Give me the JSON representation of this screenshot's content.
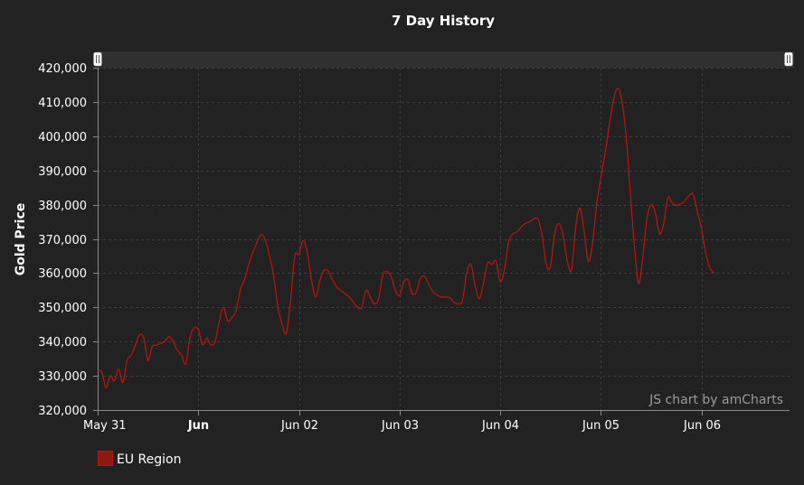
{
  "chart_data": {
    "type": "line",
    "title": "7 Day History",
    "ylabel": "Gold Price",
    "xlabel": "",
    "ylim": [
      320000,
      420000
    ],
    "yticks": [
      "320,000",
      "330,000",
      "340,000",
      "350,000",
      "360,000",
      "370,000",
      "380,000",
      "390,000",
      "400,000",
      "410,000",
      "420,000"
    ],
    "x_domain": [
      "2023-05-31T00:00",
      "2023-06-06T21:00"
    ],
    "xticks": [
      {
        "date": "2023-05-31T00:00",
        "label": "May 31",
        "bold": false
      },
      {
        "date": "2023-06-01T00:00",
        "label": "Jun",
        "bold": true
      },
      {
        "date": "2023-06-02T00:00",
        "label": "Jun 02",
        "bold": false
      },
      {
        "date": "2023-06-03T00:00",
        "label": "Jun 03",
        "bold": false
      },
      {
        "date": "2023-06-04T00:00",
        "label": "Jun 04",
        "bold": false
      },
      {
        "date": "2023-06-05T00:00",
        "label": "Jun 05",
        "bold": false
      },
      {
        "date": "2023-06-06T00:00",
        "label": "Jun 06",
        "bold": false
      }
    ],
    "grid": true,
    "legend_position": "bottom-left",
    "credit": "JS chart by amCharts",
    "series": [
      {
        "name": "EU Region",
        "color": "#b3170f",
        "points": [
          [
            "2023-05-31T00:00",
            331500
          ],
          [
            "2023-05-31T01:00",
            331000
          ],
          [
            "2023-05-31T02:00",
            326500
          ],
          [
            "2023-05-31T03:00",
            330000
          ],
          [
            "2023-05-31T04:00",
            328500
          ],
          [
            "2023-05-31T05:00",
            332000
          ],
          [
            "2023-05-31T06:00",
            328000
          ],
          [
            "2023-05-31T07:00",
            334500
          ],
          [
            "2023-05-31T08:00",
            336000
          ],
          [
            "2023-05-31T09:00",
            339000
          ],
          [
            "2023-05-31T10:00",
            342000
          ],
          [
            "2023-05-31T11:00",
            341000
          ],
          [
            "2023-05-31T12:00",
            334500
          ],
          [
            "2023-05-31T13:00",
            338500
          ],
          [
            "2023-05-31T14:00",
            339000
          ],
          [
            "2023-05-31T15:00",
            339500
          ],
          [
            "2023-05-31T16:00",
            340000
          ],
          [
            "2023-05-31T17:00",
            341500
          ],
          [
            "2023-05-31T18:00",
            340000
          ],
          [
            "2023-05-31T19:00",
            337500
          ],
          [
            "2023-05-31T20:00",
            336000
          ],
          [
            "2023-05-31T21:00",
            333500
          ],
          [
            "2023-05-31T22:00",
            341000
          ],
          [
            "2023-05-31T23:00",
            344000
          ],
          [
            "2023-06-01T00:00",
            343500
          ],
          [
            "2023-06-01T01:00",
            339000
          ],
          [
            "2023-06-01T02:00",
            341000
          ],
          [
            "2023-06-01T03:00",
            339000
          ],
          [
            "2023-06-01T04:00",
            340000
          ],
          [
            "2023-06-01T05:00",
            346000
          ],
          [
            "2023-06-01T06:00",
            350000
          ],
          [
            "2023-06-01T07:00",
            346000
          ],
          [
            "2023-06-01T08:00",
            347000
          ],
          [
            "2023-06-01T09:00",
            349000
          ],
          [
            "2023-06-01T10:00",
            355000
          ],
          [
            "2023-06-01T11:00",
            358000
          ],
          [
            "2023-06-01T12:00",
            362500
          ],
          [
            "2023-06-01T13:00",
            366000
          ],
          [
            "2023-06-01T14:00",
            369000
          ],
          [
            "2023-06-01T15:00",
            371300
          ],
          [
            "2023-06-01T16:00",
            369500
          ],
          [
            "2023-06-01T17:00",
            365000
          ],
          [
            "2023-06-01T18:00",
            359000
          ],
          [
            "2023-06-01T19:00",
            350000
          ],
          [
            "2023-06-01T20:00",
            345000
          ],
          [
            "2023-06-01T21:00",
            342500
          ],
          [
            "2023-06-01T22:00",
            352000
          ],
          [
            "2023-06-01T23:00",
            365000
          ],
          [
            "2023-06-02T00:00",
            365500
          ],
          [
            "2023-06-02T01:00",
            369500
          ],
          [
            "2023-06-02T02:00",
            366000
          ],
          [
            "2023-06-02T03:00",
            358000
          ],
          [
            "2023-06-02T04:00",
            353000
          ],
          [
            "2023-06-02T05:00",
            358000
          ],
          [
            "2023-06-02T06:00",
            360800
          ],
          [
            "2023-06-02T07:00",
            360600
          ],
          [
            "2023-06-02T08:00",
            358000
          ],
          [
            "2023-06-02T09:00",
            356000
          ],
          [
            "2023-06-02T10:00",
            355000
          ],
          [
            "2023-06-02T11:00",
            354000
          ],
          [
            "2023-06-02T12:00",
            353000
          ],
          [
            "2023-06-02T13:00",
            351500
          ],
          [
            "2023-06-02T14:00",
            350000
          ],
          [
            "2023-06-02T15:00",
            350000
          ],
          [
            "2023-06-02T16:00",
            355000
          ],
          [
            "2023-06-02T17:00",
            353000
          ],
          [
            "2023-06-02T18:00",
            351000
          ],
          [
            "2023-06-02T19:00",
            352500
          ],
          [
            "2023-06-02T20:00",
            359500
          ],
          [
            "2023-06-02T21:00",
            360500
          ],
          [
            "2023-06-02T22:00",
            359000
          ],
          [
            "2023-06-02T23:00",
            355000
          ],
          [
            "2023-06-03T00:00",
            353500
          ],
          [
            "2023-06-03T01:00",
            357500
          ],
          [
            "2023-06-03T02:00",
            358000
          ],
          [
            "2023-06-03T03:00",
            354000
          ],
          [
            "2023-06-03T04:00",
            354500
          ],
          [
            "2023-06-03T05:00",
            358500
          ],
          [
            "2023-06-03T06:00",
            359000
          ],
          [
            "2023-06-03T07:00",
            356500
          ],
          [
            "2023-06-03T08:00",
            354500
          ],
          [
            "2023-06-03T09:00",
            353500
          ],
          [
            "2023-06-03T10:00",
            353000
          ],
          [
            "2023-06-03T11:00",
            353000
          ],
          [
            "2023-06-03T12:00",
            352800
          ],
          [
            "2023-06-03T13:00",
            351500
          ],
          [
            "2023-06-03T14:00",
            351000
          ],
          [
            "2023-06-03T15:00",
            352000
          ],
          [
            "2023-06-03T16:00",
            360000
          ],
          [
            "2023-06-03T17:00",
            362500
          ],
          [
            "2023-06-03T18:00",
            356500
          ],
          [
            "2023-06-03T19:00",
            352500
          ],
          [
            "2023-06-03T20:00",
            357000
          ],
          [
            "2023-06-03T21:00",
            363000
          ],
          [
            "2023-06-03T22:00",
            362500
          ],
          [
            "2023-06-03T23:00",
            363500
          ],
          [
            "2023-06-04T00:00",
            357500
          ],
          [
            "2023-06-04T01:00",
            361000
          ],
          [
            "2023-06-04T02:00",
            369000
          ],
          [
            "2023-06-04T03:00",
            371500
          ],
          [
            "2023-06-04T04:00",
            372000
          ],
          [
            "2023-06-04T05:00",
            373500
          ],
          [
            "2023-06-04T06:00",
            374500
          ],
          [
            "2023-06-04T07:00",
            375000
          ],
          [
            "2023-06-04T08:00",
            375800
          ],
          [
            "2023-06-04T09:00",
            375800
          ],
          [
            "2023-06-04T10:00",
            371000
          ],
          [
            "2023-06-04T11:00",
            362500
          ],
          [
            "2023-06-04T12:00",
            362000
          ],
          [
            "2023-06-04T13:00",
            371500
          ],
          [
            "2023-06-04T14:00",
            374500
          ],
          [
            "2023-06-04T15:00",
            371000
          ],
          [
            "2023-06-04T16:00",
            363500
          ],
          [
            "2023-06-04T17:00",
            361000
          ],
          [
            "2023-06-04T18:00",
            373500
          ],
          [
            "2023-06-04T19:00",
            379000
          ],
          [
            "2023-06-04T20:00",
            372500
          ],
          [
            "2023-06-04T21:00",
            363500
          ],
          [
            "2023-06-04T22:00",
            368500
          ],
          [
            "2023-06-04T23:00",
            380000
          ],
          [
            "2023-06-05T00:00",
            388000
          ],
          [
            "2023-06-05T01:00",
            395000
          ],
          [
            "2023-06-05T02:00",
            403000
          ],
          [
            "2023-06-05T03:00",
            410500
          ],
          [
            "2023-06-05T04:00",
            414000
          ],
          [
            "2023-06-05T05:00",
            410500
          ],
          [
            "2023-06-05T06:00",
            400500
          ],
          [
            "2023-06-05T07:00",
            384000
          ],
          [
            "2023-06-05T08:00",
            368000
          ],
          [
            "2023-06-05T09:00",
            357000
          ],
          [
            "2023-06-05T10:00",
            364500
          ],
          [
            "2023-06-05T11:00",
            376000
          ],
          [
            "2023-06-05T12:00",
            380000
          ],
          [
            "2023-06-05T13:00",
            377500
          ],
          [
            "2023-06-05T14:00",
            371500
          ],
          [
            "2023-06-05T15:00",
            374500
          ],
          [
            "2023-06-05T16:00",
            382000
          ],
          [
            "2023-06-05T17:00",
            380500
          ],
          [
            "2023-06-05T18:00",
            379800
          ],
          [
            "2023-06-05T19:00",
            380200
          ],
          [
            "2023-06-05T20:00",
            381000
          ],
          [
            "2023-06-05T21:00",
            382600
          ],
          [
            "2023-06-05T22:00",
            383000
          ],
          [
            "2023-06-05T23:00",
            378000
          ],
          [
            "2023-06-06T00:00",
            373000
          ],
          [
            "2023-06-06T01:00",
            366000
          ],
          [
            "2023-06-06T02:00",
            361500
          ],
          [
            "2023-06-06T03:00",
            360000
          ]
        ]
      }
    ]
  }
}
